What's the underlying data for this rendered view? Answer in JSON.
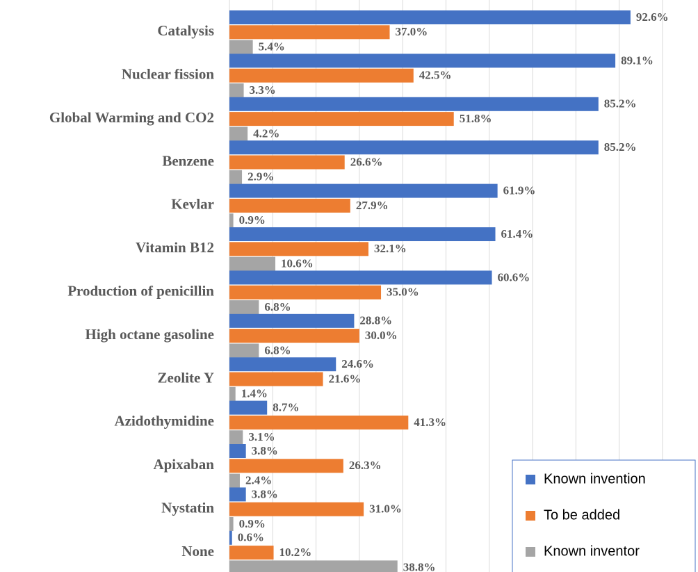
{
  "chart_data": {
    "type": "bar",
    "orientation": "horizontal",
    "categories": [
      "Catalysis",
      "Nuclear fission",
      "Global Warming and CO2",
      "Benzene",
      "Kevlar",
      "Vitamin B12",
      "Production of penicillin",
      "High octane gasoline",
      "Zeolite Y",
      "Azidothymidine",
      "Apixaban",
      "Nystatin",
      "None"
    ],
    "series": [
      {
        "name": "Known invention",
        "color": "#4472c4",
        "values": [
          92.6,
          89.1,
          85.2,
          85.2,
          61.9,
          61.4,
          60.6,
          28.8,
          24.6,
          8.7,
          3.8,
          3.8,
          0.6
        ],
        "value_labels": [
          "92.6%",
          "89.1%",
          "85.2%",
          "85.2%",
          "61.9%",
          "61.4%",
          "60.6%",
          "28.8%",
          "24.6%",
          "8.7%",
          "3.8%",
          "3.8%",
          "0.6%"
        ]
      },
      {
        "name": "To be added",
        "color": "#ed7d31",
        "values": [
          37.0,
          42.5,
          51.8,
          26.6,
          27.9,
          32.1,
          35.0,
          30.0,
          21.6,
          41.3,
          26.3,
          31.0,
          10.2
        ],
        "value_labels": [
          "37.0%",
          "42.5%",
          "51.8%",
          "26.6%",
          "27.9%",
          "32.1%",
          "35.0%",
          "30.0%",
          "21.6%",
          "41.3%",
          "26.3%",
          "31.0%",
          "10.2%"
        ]
      },
      {
        "name": "Known inventor",
        "color": "#a5a5a5",
        "values": [
          5.4,
          3.3,
          4.2,
          2.9,
          0.9,
          10.6,
          6.8,
          6.8,
          1.4,
          3.1,
          2.4,
          0.9,
          38.8
        ],
        "value_labels": [
          "5.4%",
          "3.3%",
          "4.2%",
          "2.9%",
          "0.9%",
          "10.6%",
          "6.8%",
          "6.8%",
          "1.4%",
          "3.1%",
          "2.4%",
          "0.9%",
          "38.8%"
        ]
      }
    ],
    "xlim": [
      0,
      100
    ],
    "xticks": [
      0,
      10,
      20,
      30,
      40,
      50,
      60,
      70,
      80,
      90,
      100
    ],
    "grid": true,
    "legend": "lower right"
  }
}
